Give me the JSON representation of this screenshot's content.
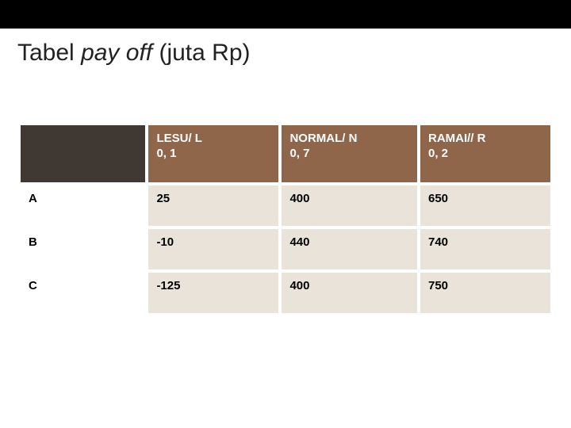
{
  "title_prefix": "Tabel ",
  "title_italic": "pay off",
  "title_suffix": " (juta Rp)",
  "table": {
    "type": "table",
    "header_bg_corner": "#403833",
    "header_bg": "#90664a",
    "header_text_color": "#ffffff",
    "row_label_bg": "#ffffff",
    "cell_bg": "#e9e3da",
    "cell_text_color": "#000000",
    "border_spacing": 4,
    "font_size": 15,
    "font_weight": "bold",
    "columns": [
      {
        "line1": "",
        "line2": ""
      },
      {
        "line1": "LESU/ L",
        "line2": "0, 1"
      },
      {
        "line1": "NORMAL/ N",
        "line2": "0, 7"
      },
      {
        "line1": "RAMAI// R",
        "line2": "0, 2"
      }
    ],
    "rows": [
      {
        "label": "A",
        "values": [
          "25",
          "400",
          "650"
        ]
      },
      {
        "label": "B",
        "values": [
          "-10",
          "440",
          "740"
        ]
      },
      {
        "label": "C",
        "values": [
          "-125",
          "400",
          "750"
        ]
      }
    ]
  }
}
